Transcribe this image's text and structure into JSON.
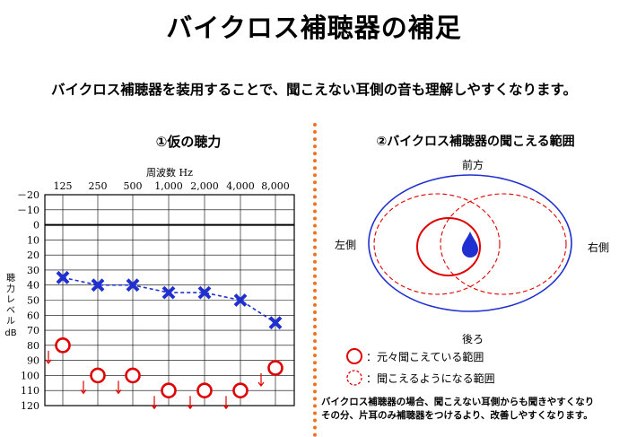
{
  "title": "バイクロス補聴器の補足",
  "subtitle": "バイクロス補聴器を装用することで、聞こえない耳側の音も理解しやすくなります。",
  "panel1": {
    "heading": "①仮の聴力",
    "freq_axis_label": "周波数 Hz",
    "y_axis_label_chars": [
      "聴",
      "力",
      "レ",
      "ベ",
      "ル"
    ],
    "y_axis_unit": "dB"
  },
  "panel2": {
    "heading": "②バイクロス補聴器の聞こえる範囲",
    "front": "前方",
    "back": "後ろ",
    "left": "左側",
    "right": "右側",
    "legend_solid": "：元々聞こえている範囲",
    "legend_dashed": "：聞こえるようになる範囲",
    "note_line1": "バイクロス補聴器の場合、聞こえない耳側からも聞きやすくなり",
    "note_line2": "その分、片耳のみ補聴器をつけるより、改善しやすくなります。"
  },
  "chart_data": {
    "type": "line",
    "x": [
      "125",
      "250",
      "500",
      "1,000",
      "2,000",
      "4,000",
      "8,000"
    ],
    "y_ticks": [
      "－20",
      "－10",
      "0",
      "10",
      "20",
      "30",
      "40",
      "50",
      "60",
      "70",
      "80",
      "90",
      "100",
      "110",
      "120"
    ],
    "ylim": [
      -20,
      120
    ],
    "y_inverted": true,
    "series": [
      {
        "marker": "x",
        "color": "#2030d0",
        "values": [
          35,
          40,
          40,
          45,
          45,
          50,
          65
        ]
      },
      {
        "marker": "o",
        "color": "#e00000",
        "values": [
          80,
          100,
          100,
          110,
          110,
          110,
          95
        ],
        "scale_out_arrows": true
      }
    ]
  },
  "colors": {
    "accent_orange": "#f07020",
    "blue": "#2030d0",
    "red": "#e00000"
  }
}
